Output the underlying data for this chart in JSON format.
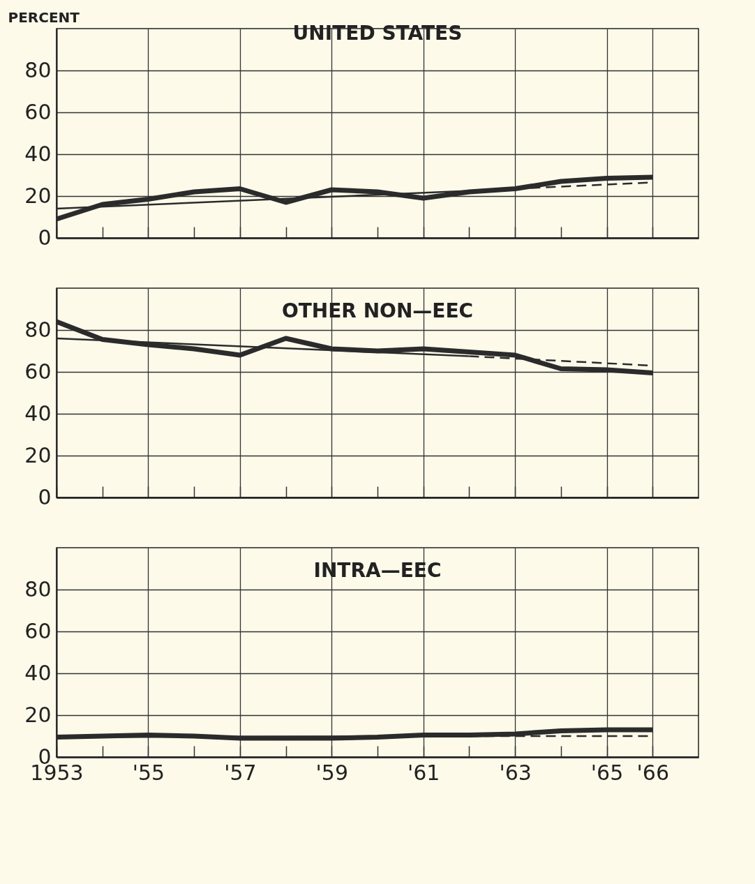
{
  "chart_data": [
    {
      "type": "line",
      "title": "UNITED STATES",
      "ylabel": "PERCENT",
      "xlim": [
        1953,
        1967
      ],
      "ylim": [
        0,
        100
      ],
      "yticks": [
        0,
        20,
        40,
        60,
        80
      ],
      "grid": true,
      "tick_labels": "y",
      "series": [
        {
          "color": "#2b2b2b",
          "x": [
            1953,
            1954,
            1955,
            1956,
            1957,
            1958,
            1959,
            1960,
            1961,
            1962,
            1963,
            1964,
            1965,
            1966
          ],
          "values": [
            9,
            16,
            18.5,
            22,
            23.5,
            17,
            23,
            22,
            19,
            22,
            23.5,
            27,
            28.5,
            29
          ]
        },
        {
          "color": "#2b2b2b",
          "x": [
            1953,
            1962
          ],
          "values": [
            14,
            22.5
          ],
          "line_style": "solid"
        },
        {
          "color": "#2b2b2b",
          "x": [
            1962,
            1966
          ],
          "values": [
            22.5,
            26.5
          ],
          "line_style": "dashed"
        }
      ]
    },
    {
      "type": "line",
      "title": "OTHER NON—EEC",
      "xlim": [
        1953,
        1967
      ],
      "ylim": [
        0,
        100
      ],
      "yticks": [
        0,
        20,
        40,
        60,
        80
      ],
      "grid": true,
      "tick_labels": "y",
      "series": [
        {
          "color": "#2b2b2b",
          "x": [
            1953,
            1954,
            1955,
            1956,
            1957,
            1958,
            1959,
            1960,
            1961,
            1962,
            1963,
            1964,
            1965,
            1966
          ],
          "values": [
            84,
            75.5,
            73,
            71,
            68,
            76,
            71,
            70,
            71,
            69.5,
            68,
            61.5,
            61,
            59.5
          ]
        },
        {
          "color": "#2b2b2b",
          "x": [
            1953,
            1962
          ],
          "values": [
            76,
            67.5
          ],
          "line_style": "solid"
        },
        {
          "color": "#2b2b2b",
          "x": [
            1962,
            1966
          ],
          "values": [
            67.5,
            63
          ],
          "line_style": "dashed"
        }
      ]
    },
    {
      "type": "line",
      "title": "INTRA—EEC",
      "xlim": [
        1953,
        1967
      ],
      "ylim": [
        0,
        100
      ],
      "yticks": [
        0,
        20,
        40,
        60,
        80
      ],
      "xticks": [
        {
          "value": 1953,
          "label": "1953"
        },
        {
          "value": 1954,
          "label": null
        },
        {
          "value": 1955,
          "label": "'55"
        },
        {
          "value": 1956,
          "label": null
        },
        {
          "value": 1957,
          "label": "'57"
        },
        {
          "value": 1958,
          "label": null
        },
        {
          "value": 1959,
          "label": "'59"
        },
        {
          "value": 1960,
          "label": null
        },
        {
          "value": 1961,
          "label": "'61"
        },
        {
          "value": 1962,
          "label": null
        },
        {
          "value": 1963,
          "label": "'63"
        },
        {
          "value": 1964,
          "label": null
        },
        {
          "value": 1965,
          "label": "'65"
        },
        {
          "value": 1966,
          "label": "'66"
        }
      ],
      "grid": true,
      "series": [
        {
          "color": "#2b2b2b",
          "x": [
            1953,
            1954,
            1955,
            1956,
            1957,
            1958,
            1959,
            1960,
            1961,
            1962,
            1963,
            1964,
            1965,
            1966
          ],
          "values": [
            9.5,
            10,
            10.5,
            10,
            9,
            9,
            9,
            9.5,
            10.5,
            10.5,
            11,
            12.5,
            13,
            13
          ]
        },
        {
          "color": "#2b2b2b",
          "x": [
            1953,
            1962
          ],
          "values": [
            9.5,
            10
          ],
          "line_style": "solid"
        },
        {
          "color": "#2b2b2b",
          "x": [
            1962,
            1966
          ],
          "values": [
            10,
            10
          ],
          "line_style": "dashed"
        }
      ]
    }
  ]
}
